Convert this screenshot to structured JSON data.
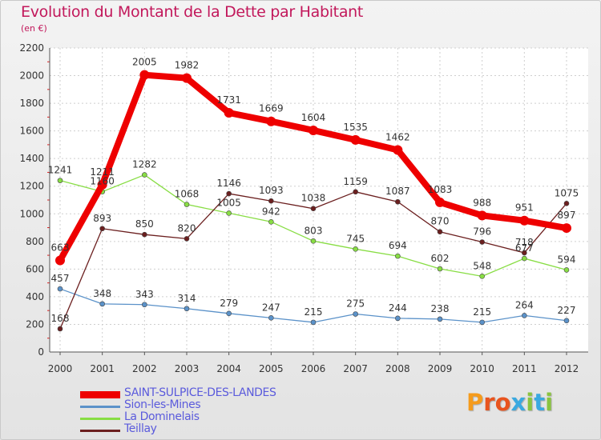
{
  "chart_data": {
    "type": "line",
    "title": "Evolution du Montant de la Dette par Habitant",
    "subtitle": "(en €)",
    "x": [
      "2000",
      "2001",
      "2002",
      "2003",
      "2004",
      "2005",
      "2006",
      "2007",
      "2008",
      "2009",
      "2010",
      "2011",
      "2012"
    ],
    "ylim": [
      0,
      2200
    ],
    "yticks": [
      "0",
      "200",
      "400",
      "600",
      "800",
      "1000",
      "1200",
      "1400",
      "1600",
      "1800",
      "2000",
      "2200"
    ],
    "grid": true,
    "legend_position": "bottom-left",
    "series": [
      {
        "name": "SAINT-SULPICE-DES-LANDES",
        "color": "#ee0000",
        "values": [
          663,
          1211,
          2005,
          1982,
          1731,
          1669,
          1604,
          1535,
          1462,
          1083,
          988,
          951,
          897
        ],
        "labels": [
          "663",
          "1211",
          "2005",
          "1982",
          "1731",
          "1669",
          "1604",
          "1535",
          "1462",
          "1083",
          "988",
          "951",
          "897"
        ]
      },
      {
        "name": "Sion-les-Mines",
        "color": "#5b92c9",
        "values": [
          457,
          348,
          343,
          314,
          279,
          247,
          215,
          275,
          244,
          238,
          215,
          264,
          227
        ],
        "labels": [
          "457",
          "348",
          "343",
          "314",
          "279",
          "247",
          "215",
          "275",
          "244",
          "238",
          "215",
          "264",
          "227"
        ]
      },
      {
        "name": "La Dominelais",
        "color": "#88dd44",
        "values": [
          1241,
          1160,
          1282,
          1068,
          1005,
          942,
          803,
          745,
          694,
          602,
          548,
          677,
          594
        ],
        "labels": [
          "1241",
          "1160",
          "1282",
          "1068",
          "1005",
          "942",
          "803",
          "745",
          "694",
          "602",
          "548",
          "677",
          "594"
        ]
      },
      {
        "name": "Teillay",
        "color": "#6b1f1f",
        "values": [
          168,
          893,
          850,
          820,
          1146,
          1093,
          1038,
          1159,
          1087,
          870,
          796,
          718,
          1075
        ],
        "labels": [
          "168",
          "893",
          "850",
          "820",
          "1146",
          "1093",
          "1038",
          "1159",
          "1087",
          "870",
          "796",
          "718",
          "1075"
        ]
      }
    ]
  },
  "logo": {
    "text": "Proxiti",
    "colors": [
      "#f59b1c",
      "#e8541e",
      "#e8541e",
      "#3aa9e0",
      "#8ac43f",
      "#3aa9e0",
      "#8ac43f"
    ]
  }
}
